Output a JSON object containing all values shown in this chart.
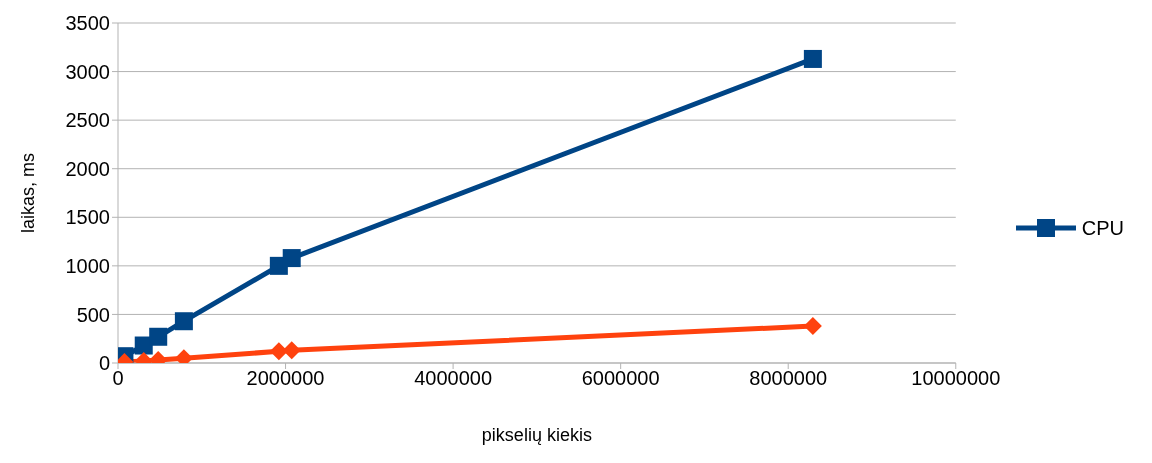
{
  "chart_data": {
    "type": "line",
    "xlabel": "pikselių kiekis",
    "ylabel": "laikas, ms",
    "xlim": [
      0,
      10000000
    ],
    "xticks": [
      0,
      2000000,
      4000000,
      6000000,
      8000000,
      10000000
    ],
    "ylim": [
      0,
      3500
    ],
    "yticks": [
      0,
      500,
      1000,
      1500,
      2000,
      2500,
      3000,
      3500
    ],
    "grid": "y",
    "legend": "right",
    "series": [
      {
        "name": "CPU",
        "color": "#004586",
        "marker": "square",
        "x": [
          76800,
          307200,
          480000,
          786432,
          1920000,
          2073600,
          8294400
        ],
        "values": [
          70,
          180,
          270,
          430,
          1000,
          1080,
          3130
        ]
      },
      {
        "color": "#ff420e",
        "marker": "diamond",
        "x": [
          76800,
          307200,
          480000,
          786432,
          1920000,
          2073600,
          8294400
        ],
        "values": [
          10,
          20,
          30,
          50,
          120,
          130,
          380
        ]
      }
    ]
  }
}
